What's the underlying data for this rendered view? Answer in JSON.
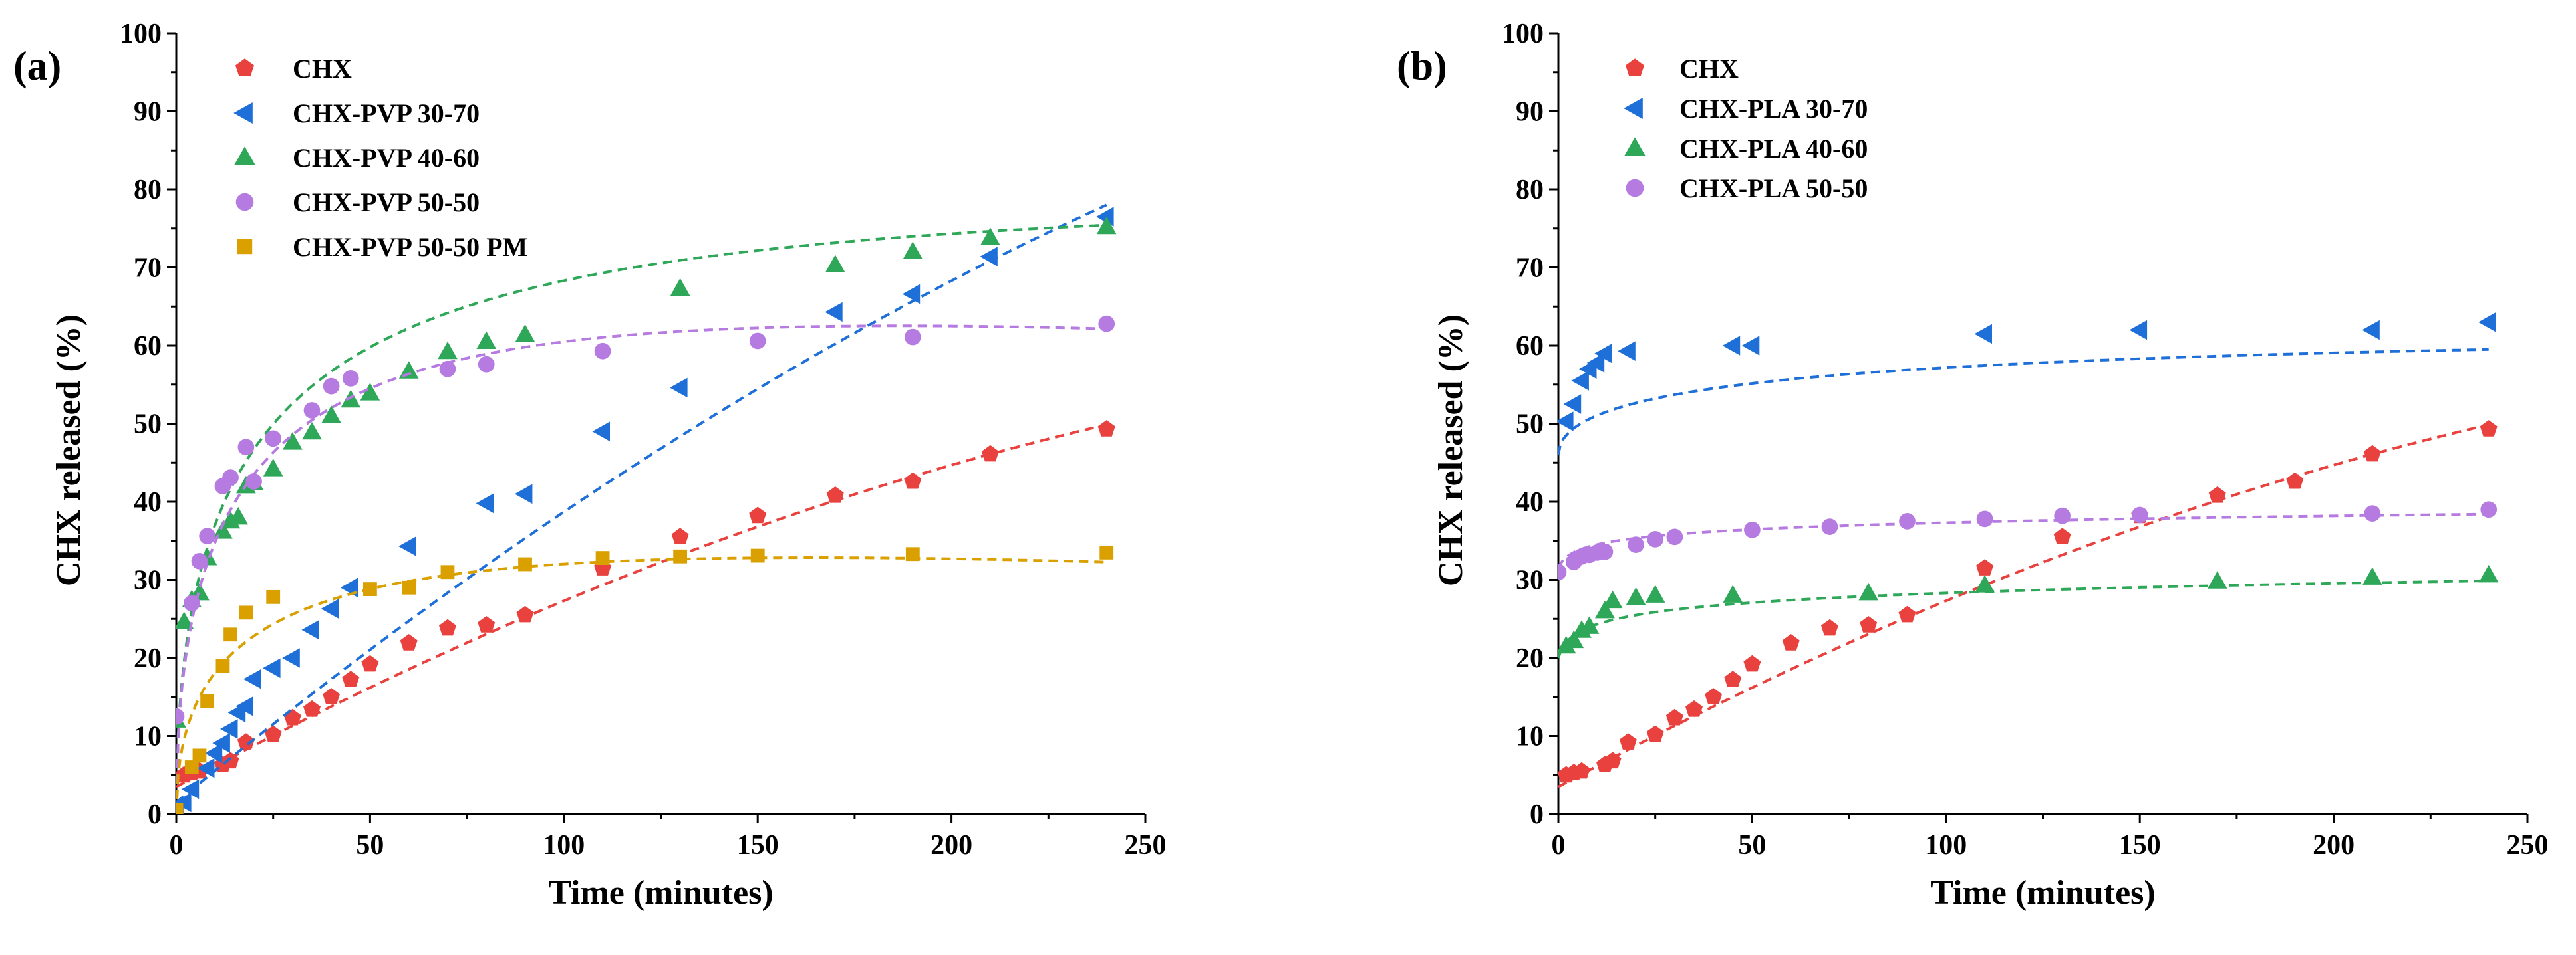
{
  "chart_data": [
    {
      "type": "scatter",
      "panel_label": "(a)",
      "xlabel": "Time (minutes)",
      "ylabel": "CHX released (%)",
      "xlim": [
        0,
        250
      ],
      "ylim": [
        0,
        100
      ],
      "xticks": [
        0,
        50,
        100,
        150,
        200,
        250
      ],
      "yticks": [
        0,
        10,
        20,
        30,
        40,
        50,
        60,
        70,
        80,
        90,
        100
      ],
      "grid": false,
      "legend_position": "top-left",
      "series": [
        {
          "name": "CHX",
          "marker": "pentagon",
          "color": "#e8413e",
          "x": [
            2,
            4,
            6,
            12,
            14,
            18,
            25,
            30,
            35,
            40,
            45,
            50,
            60,
            70,
            80,
            90,
            110,
            130,
            150,
            170,
            190,
            210,
            240
          ],
          "y": [
            5,
            5.3,
            5.5,
            6.3,
            6.8,
            9.2,
            10.2,
            12.3,
            13.4,
            15,
            17.2,
            19.2,
            21.9,
            23.8,
            24.2,
            25.5,
            31.5,
            35.5,
            38.2,
            40.8,
            42.6,
            46.1,
            49.3
          ],
          "fit": {
            "type": "poly2",
            "coef": [
              3.5,
              0.27,
              -0.00032
            ]
          }
        },
        {
          "name": "CHX-PVP 30-70",
          "marker": "triangle-left",
          "color": "#1f6fd9",
          "x": [
            0,
            2,
            4,
            8,
            10,
            12,
            14,
            16,
            18,
            20,
            25,
            30,
            35,
            40,
            45,
            60,
            80,
            90,
            110,
            130,
            170,
            190,
            210,
            240
          ],
          "y": [
            0.5,
            1.5,
            3.2,
            5.9,
            7.8,
            9.1,
            10.9,
            13,
            13.8,
            17.3,
            18.7,
            20,
            23.6,
            26.3,
            29,
            34.3,
            39.8,
            41,
            49,
            54.6,
            64.3,
            66.6,
            71.4,
            76.5
          ],
          "fit": {
            "type": "poly2",
            "coef": [
              1.5,
              0.41,
              -0.00038
            ]
          }
        },
        {
          "name": "CHX-PVP 40-60",
          "marker": "triangle-up",
          "color": "#2ea858",
          "x": [
            0,
            2,
            4,
            6,
            8,
            12,
            14,
            16,
            18,
            20,
            25,
            30,
            35,
            40,
            45,
            50,
            60,
            70,
            80,
            90,
            130,
            170,
            190,
            210,
            240
          ],
          "y": [
            12,
            24.6,
            27.4,
            28.3,
            32.8,
            36.2,
            37.5,
            38,
            42,
            42.4,
            44.2,
            47.6,
            48.9,
            51,
            53,
            53.9,
            56.7,
            59.2,
            60.5,
            61.4,
            67.3,
            70.3,
            72,
            73.8,
            75.2
          ],
          "fit": {
            "type": "sat",
            "A": 79,
            "k": 0.5
          }
        },
        {
          "name": "CHX-PVP 50-50",
          "marker": "circle",
          "color": "#b57be0",
          "x": [
            0,
            4,
            6,
            8,
            12,
            14,
            18,
            20,
            25,
            35,
            40,
            45,
            70,
            80,
            110,
            150,
            190,
            240
          ],
          "y": [
            12.5,
            27,
            32.4,
            35.6,
            42,
            43.1,
            47,
            42.6,
            48.1,
            51.7,
            54.8,
            55.8,
            57,
            57.6,
            59.3,
            60.6,
            61.1,
            62.8
          ],
          "fit": {
            "type": "sat-decay",
            "A": 72,
            "k": 0.6,
            "d": 0.00085
          }
        },
        {
          "name": "CHX-PVP 50-50 PM",
          "marker": "square",
          "color": "#d9a000",
          "x": [
            0,
            4,
            6,
            8,
            12,
            14,
            18,
            25,
            50,
            60,
            70,
            90,
            110,
            130,
            150,
            190,
            240
          ],
          "y": [
            0.5,
            6,
            7.5,
            14.5,
            19,
            23,
            25.8,
            27.8,
            28.8,
            29,
            31,
            32,
            32.8,
            33,
            33.1,
            33.3,
            33.5
          ],
          "fit": {
            "type": "sat-decay",
            "A": 40,
            "k": 0.55,
            "d": 0.00125
          }
        }
      ]
    },
    {
      "type": "scatter",
      "panel_label": "(b)",
      "xlabel": "Time (minutes)",
      "ylabel": "CHX released (%)",
      "xlim": [
        0,
        250
      ],
      "ylim": [
        0,
        100
      ],
      "xticks": [
        0,
        50,
        100,
        150,
        200,
        250
      ],
      "yticks": [
        0,
        10,
        20,
        30,
        40,
        50,
        60,
        70,
        80,
        90,
        100
      ],
      "grid": false,
      "legend_position": "top-left",
      "series": [
        {
          "name": "CHX",
          "marker": "pentagon",
          "color": "#e8413e",
          "x": [
            2,
            4,
            6,
            12,
            14,
            18,
            25,
            30,
            35,
            40,
            45,
            50,
            60,
            70,
            80,
            90,
            110,
            130,
            150,
            170,
            190,
            210,
            240
          ],
          "y": [
            5,
            5.3,
            5.5,
            6.3,
            6.8,
            9.2,
            10.2,
            12.3,
            13.4,
            15,
            17.2,
            19.2,
            21.9,
            23.8,
            24.2,
            25.5,
            31.5,
            35.5,
            38.2,
            40.8,
            42.6,
            46.1,
            49.3
          ],
          "fit": {
            "type": "poly2",
            "coef": [
              3.5,
              0.27,
              -0.00032
            ]
          }
        },
        {
          "name": "CHX-PLA 30-70",
          "marker": "triangle-left",
          "color": "#1f6fd9",
          "x": [
            2,
            4,
            6,
            8,
            10,
            12,
            18,
            45,
            50,
            110,
            150,
            210,
            240
          ],
          "y": [
            50.3,
            52.5,
            55.5,
            57,
            57.8,
            59,
            59.3,
            60,
            60,
            61.5,
            62,
            62,
            63
          ],
          "fit": {
            "type": "sat",
            "A": 62,
            "k": 0.3,
            "b": 46
          }
        },
        {
          "name": "CHX-PLA 40-60",
          "marker": "triangle-up",
          "color": "#2ea858",
          "x": [
            2,
            4,
            6,
            8,
            12,
            14,
            20,
            25,
            45,
            80,
            110,
            170,
            210,
            240
          ],
          "y": [
            21.5,
            22.2,
            23.5,
            24,
            26,
            27.3,
            27.7,
            28,
            28,
            28.3,
            29.3,
            29.8,
            30.3,
            30.6
          ],
          "fit": {
            "type": "sat-log",
            "a": 20,
            "b": 2
          }
        },
        {
          "name": "CHX-PLA 50-50",
          "marker": "circle",
          "color": "#b57be0",
          "x": [
            0,
            4,
            6,
            8,
            10,
            12,
            20,
            25,
            30,
            50,
            70,
            90,
            110,
            130,
            150,
            210,
            240
          ],
          "y": [
            31,
            32.3,
            33,
            33.2,
            33.5,
            33.6,
            34.5,
            35.2,
            35.5,
            36.4,
            36.8,
            37.5,
            37.8,
            38.2,
            38.3,
            38.5,
            39
          ],
          "fit": {
            "type": "sat-log",
            "a": 31.5,
            "b": 1.4
          }
        }
      ]
    }
  ]
}
